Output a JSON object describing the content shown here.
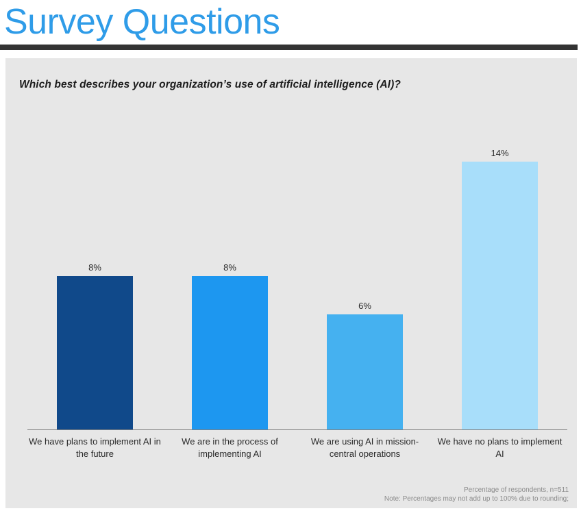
{
  "page": {
    "title": "Survey Questions"
  },
  "chart_data": {
    "type": "bar",
    "title": "Which best describes your organization’s use of artificial intelligence (AI)?",
    "categories": [
      "We have plans to implement AI in the future",
      "We are in the process of implementing AI",
      "We are using AI in mission-central operations",
      "We have no plans to implement AI"
    ],
    "values": [
      8,
      8,
      6,
      14
    ],
    "value_labels": [
      "8%",
      "8%",
      "6%",
      "14%"
    ],
    "bar_colors": [
      "#10498A",
      "#1D97F0",
      "#45B1F0",
      "#A8DEFA"
    ],
    "xlabel": "",
    "ylabel": "Percentage of respondents",
    "ylim": [
      0,
      16
    ],
    "grid": false,
    "legend": "none"
  },
  "footer": {
    "line1": "Percentage of respondents, n=511",
    "line2": "Note: Percentages may not add up to 100% due to rounding;"
  },
  "colors": {
    "title": "#2F9CE8",
    "divider": "#333333",
    "panel_bg": "#E7E7E7",
    "axis": "#7F7F7F",
    "text_dark": "#2B2B2B",
    "footer_text": "#8A8A8A"
  }
}
